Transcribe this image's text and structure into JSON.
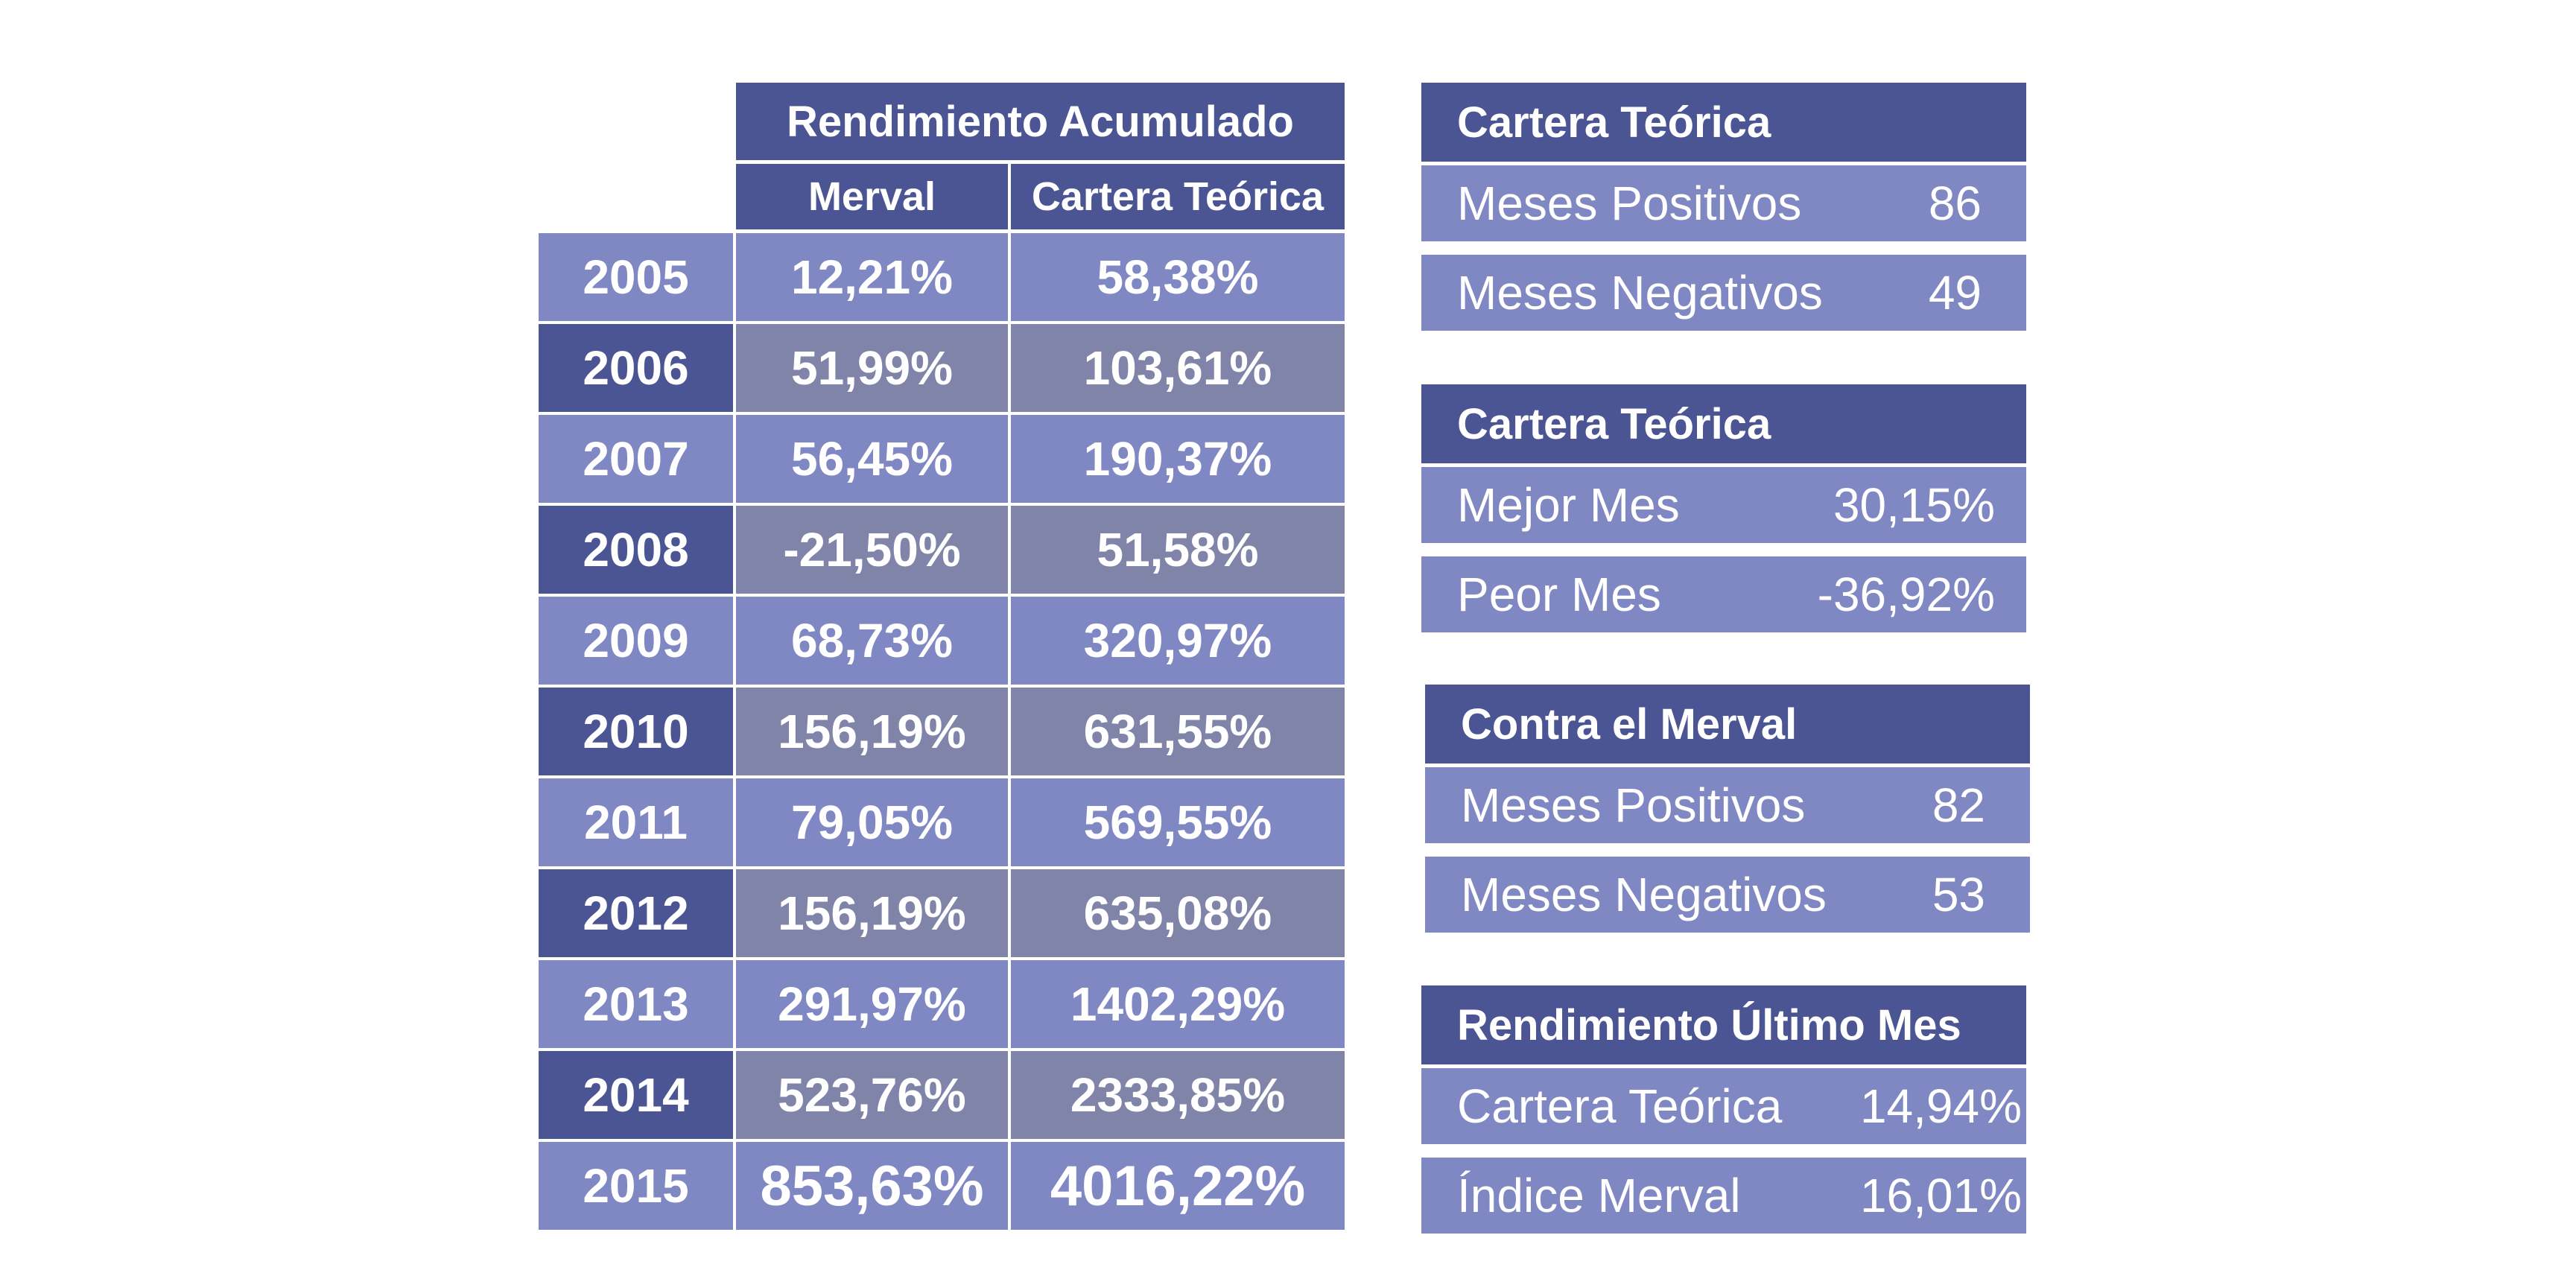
{
  "table": {
    "title": "Rendimiento Acumulado",
    "col_merval": "Merval",
    "col_cartera": "Cartera Teórica",
    "rows": [
      {
        "year": "2005",
        "merval": "12,21%",
        "cartera": "58,38%"
      },
      {
        "year": "2006",
        "merval": "51,99%",
        "cartera": "103,61%"
      },
      {
        "year": "2007",
        "merval": "56,45%",
        "cartera": "190,37%"
      },
      {
        "year": "2008",
        "merval": "-21,50%",
        "cartera": "51,58%"
      },
      {
        "year": "2009",
        "merval": "68,73%",
        "cartera": "320,97%"
      },
      {
        "year": "2010",
        "merval": "156,19%",
        "cartera": "631,55%"
      },
      {
        "year": "2011",
        "merval": "79,05%",
        "cartera": "569,55%"
      },
      {
        "year": "2012",
        "merval": "156,19%",
        "cartera": "635,08%"
      },
      {
        "year": "2013",
        "merval": "291,97%",
        "cartera": "1402,29%"
      },
      {
        "year": "2014",
        "merval": "523,76%",
        "cartera": "2333,85%"
      },
      {
        "year": "2015",
        "merval": "853,63%",
        "cartera": "4016,22%"
      }
    ]
  },
  "panels": [
    {
      "title": "Cartera Teórica",
      "rows": [
        {
          "label": "Meses Positivos",
          "value": "86"
        },
        {
          "label": "Meses Negativos",
          "value": "49"
        }
      ]
    },
    {
      "title": "Cartera Teórica",
      "rows": [
        {
          "label": "Mejor Mes",
          "value": "30,15%"
        },
        {
          "label": "Peor Mes",
          "value": "-36,92%"
        }
      ]
    },
    {
      "title": "Contra el Merval",
      "rows": [
        {
          "label": "Meses Positivos",
          "value": "82"
        },
        {
          "label": "Meses Negativos",
          "value": "53"
        }
      ]
    },
    {
      "title": "Rendimiento Último Mes",
      "rows": [
        {
          "label": "Cartera Teórica",
          "value": "14,94%"
        },
        {
          "label": "Índice Merval",
          "value": "16,01%"
        }
      ]
    }
  ],
  "colors": {
    "header": "#4b5593",
    "light": "#8088c3",
    "mid": "#8084a8"
  }
}
